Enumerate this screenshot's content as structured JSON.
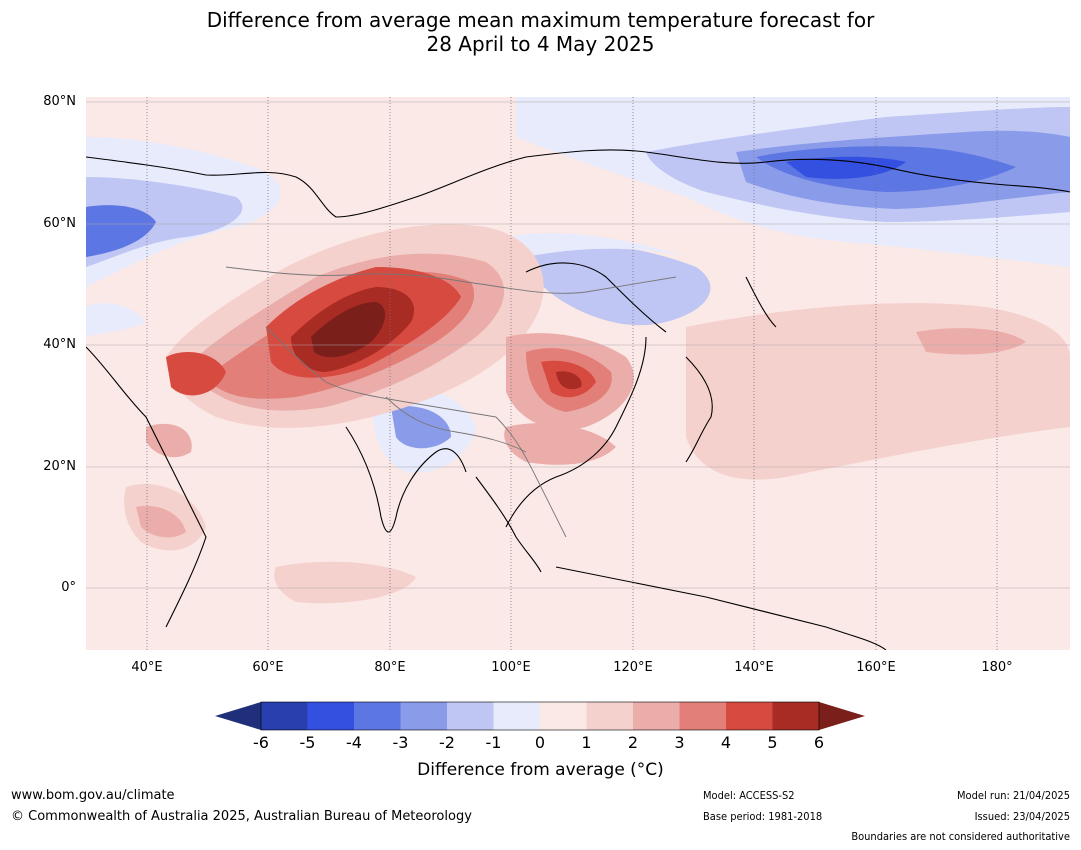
{
  "title_line1": "Difference from average mean maximum temperature forecast for",
  "title_line2": "28 April to 4 May 2025",
  "lat_labels": [
    "80°N",
    "60°N",
    "40°N",
    "20°N",
    "0°"
  ],
  "lon_labels": [
    "40°E",
    "60°E",
    "80°E",
    "100°E",
    "120°E",
    "140°E",
    "160°E",
    "180°"
  ],
  "colorbar": {
    "ticks": [
      "-6",
      "-5",
      "-4",
      "-3",
      "-2",
      "-1",
      "0",
      "1",
      "2",
      "3",
      "4",
      "5",
      "6"
    ],
    "label": "Difference from average (°C)",
    "colors": [
      "#1f2f7a",
      "#2a3fae",
      "#3350e0",
      "#5c76e3",
      "#8a9be9",
      "#bfc6f3",
      "#e8ebfb",
      "#fbe9e7",
      "#f5d1cd",
      "#ebadaa",
      "#e37f79",
      "#d64a40",
      "#a82b24",
      "#7a1f1a"
    ]
  },
  "footer": {
    "url": "www.bom.gov.au/climate",
    "copyright": "© Commonwealth of Australia 2025, Australian Bureau of Meteorology",
    "model": "Model: ACCESS-S2",
    "base_period": "Base period: 1981-2018",
    "model_run": "Model run: 21/04/2025",
    "issued": "Issued: 23/04/2025",
    "boundaries": "Boundaries are not considered authoritative"
  }
}
